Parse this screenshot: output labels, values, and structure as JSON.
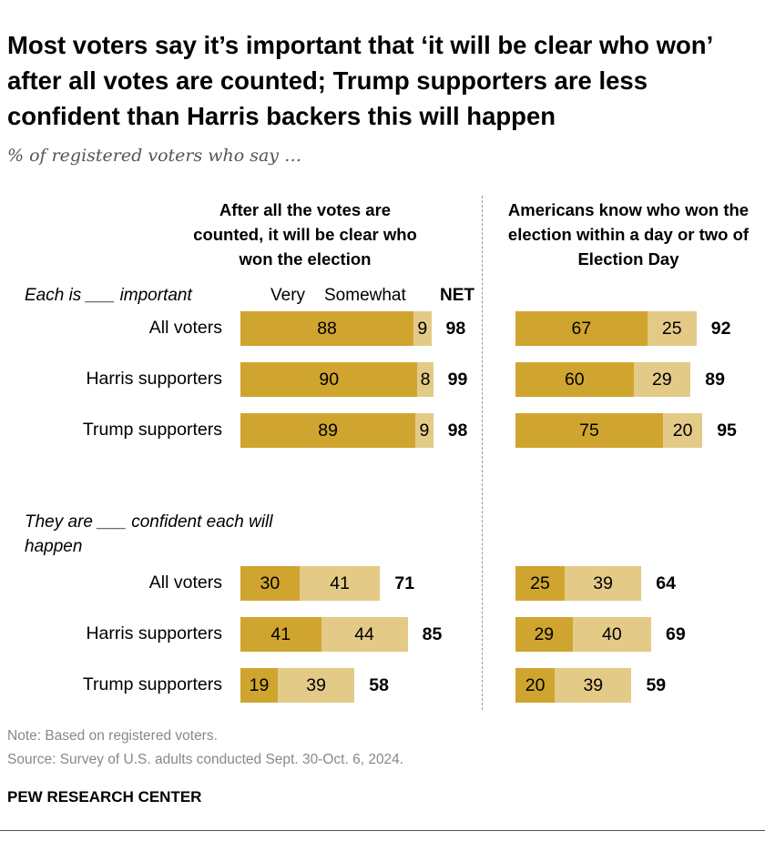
{
  "chart_data": {
    "type": "bar",
    "title": "Most voters say it’s important that ‘it will be clear who won’ after all votes are counted; Trump supporters are less confident than Harris backers this will happen",
    "subtitle": "% of registered voters who say …",
    "panels": [
      {
        "heading": "After all the votes are counted, it will be clear who won the election"
      },
      {
        "heading": "Americans know who won the election within a day or two of Election Day"
      }
    ],
    "legend": {
      "very": "Very",
      "somewhat": "Somewhat",
      "net": "NET"
    },
    "colors": {
      "very": "#D0A52F",
      "somewhat": "#E3CA87"
    },
    "groups": [
      {
        "label": "Each is ___ important",
        "categories": [
          "All voters",
          "Harris supporters",
          "Trump supporters"
        ],
        "panels": [
          {
            "very": [
              88,
              90,
              89
            ],
            "somewhat": [
              9,
              8,
              9
            ],
            "net": [
              98,
              99,
              98
            ]
          },
          {
            "very": [
              67,
              60,
              75
            ],
            "somewhat": [
              25,
              29,
              20
            ],
            "net": [
              92,
              89,
              95
            ]
          }
        ]
      },
      {
        "label": "They are ___ confident each will happen",
        "categories": [
          "All voters",
          "Harris supporters",
          "Trump supporters"
        ],
        "panels": [
          {
            "very": [
              30,
              41,
              19
            ],
            "somewhat": [
              41,
              44,
              39
            ],
            "net": [
              71,
              85,
              58
            ]
          },
          {
            "very": [
              25,
              29,
              20
            ],
            "somewhat": [
              39,
              40,
              39
            ],
            "net": [
              64,
              69,
              59
            ]
          }
        ]
      }
    ],
    "note": "Note: Based on registered voters.",
    "source": "Source: Survey of U.S. adults conducted Sept. 30-Oct. 6, 2024.",
    "brand": "PEW RESEARCH CENTER"
  }
}
